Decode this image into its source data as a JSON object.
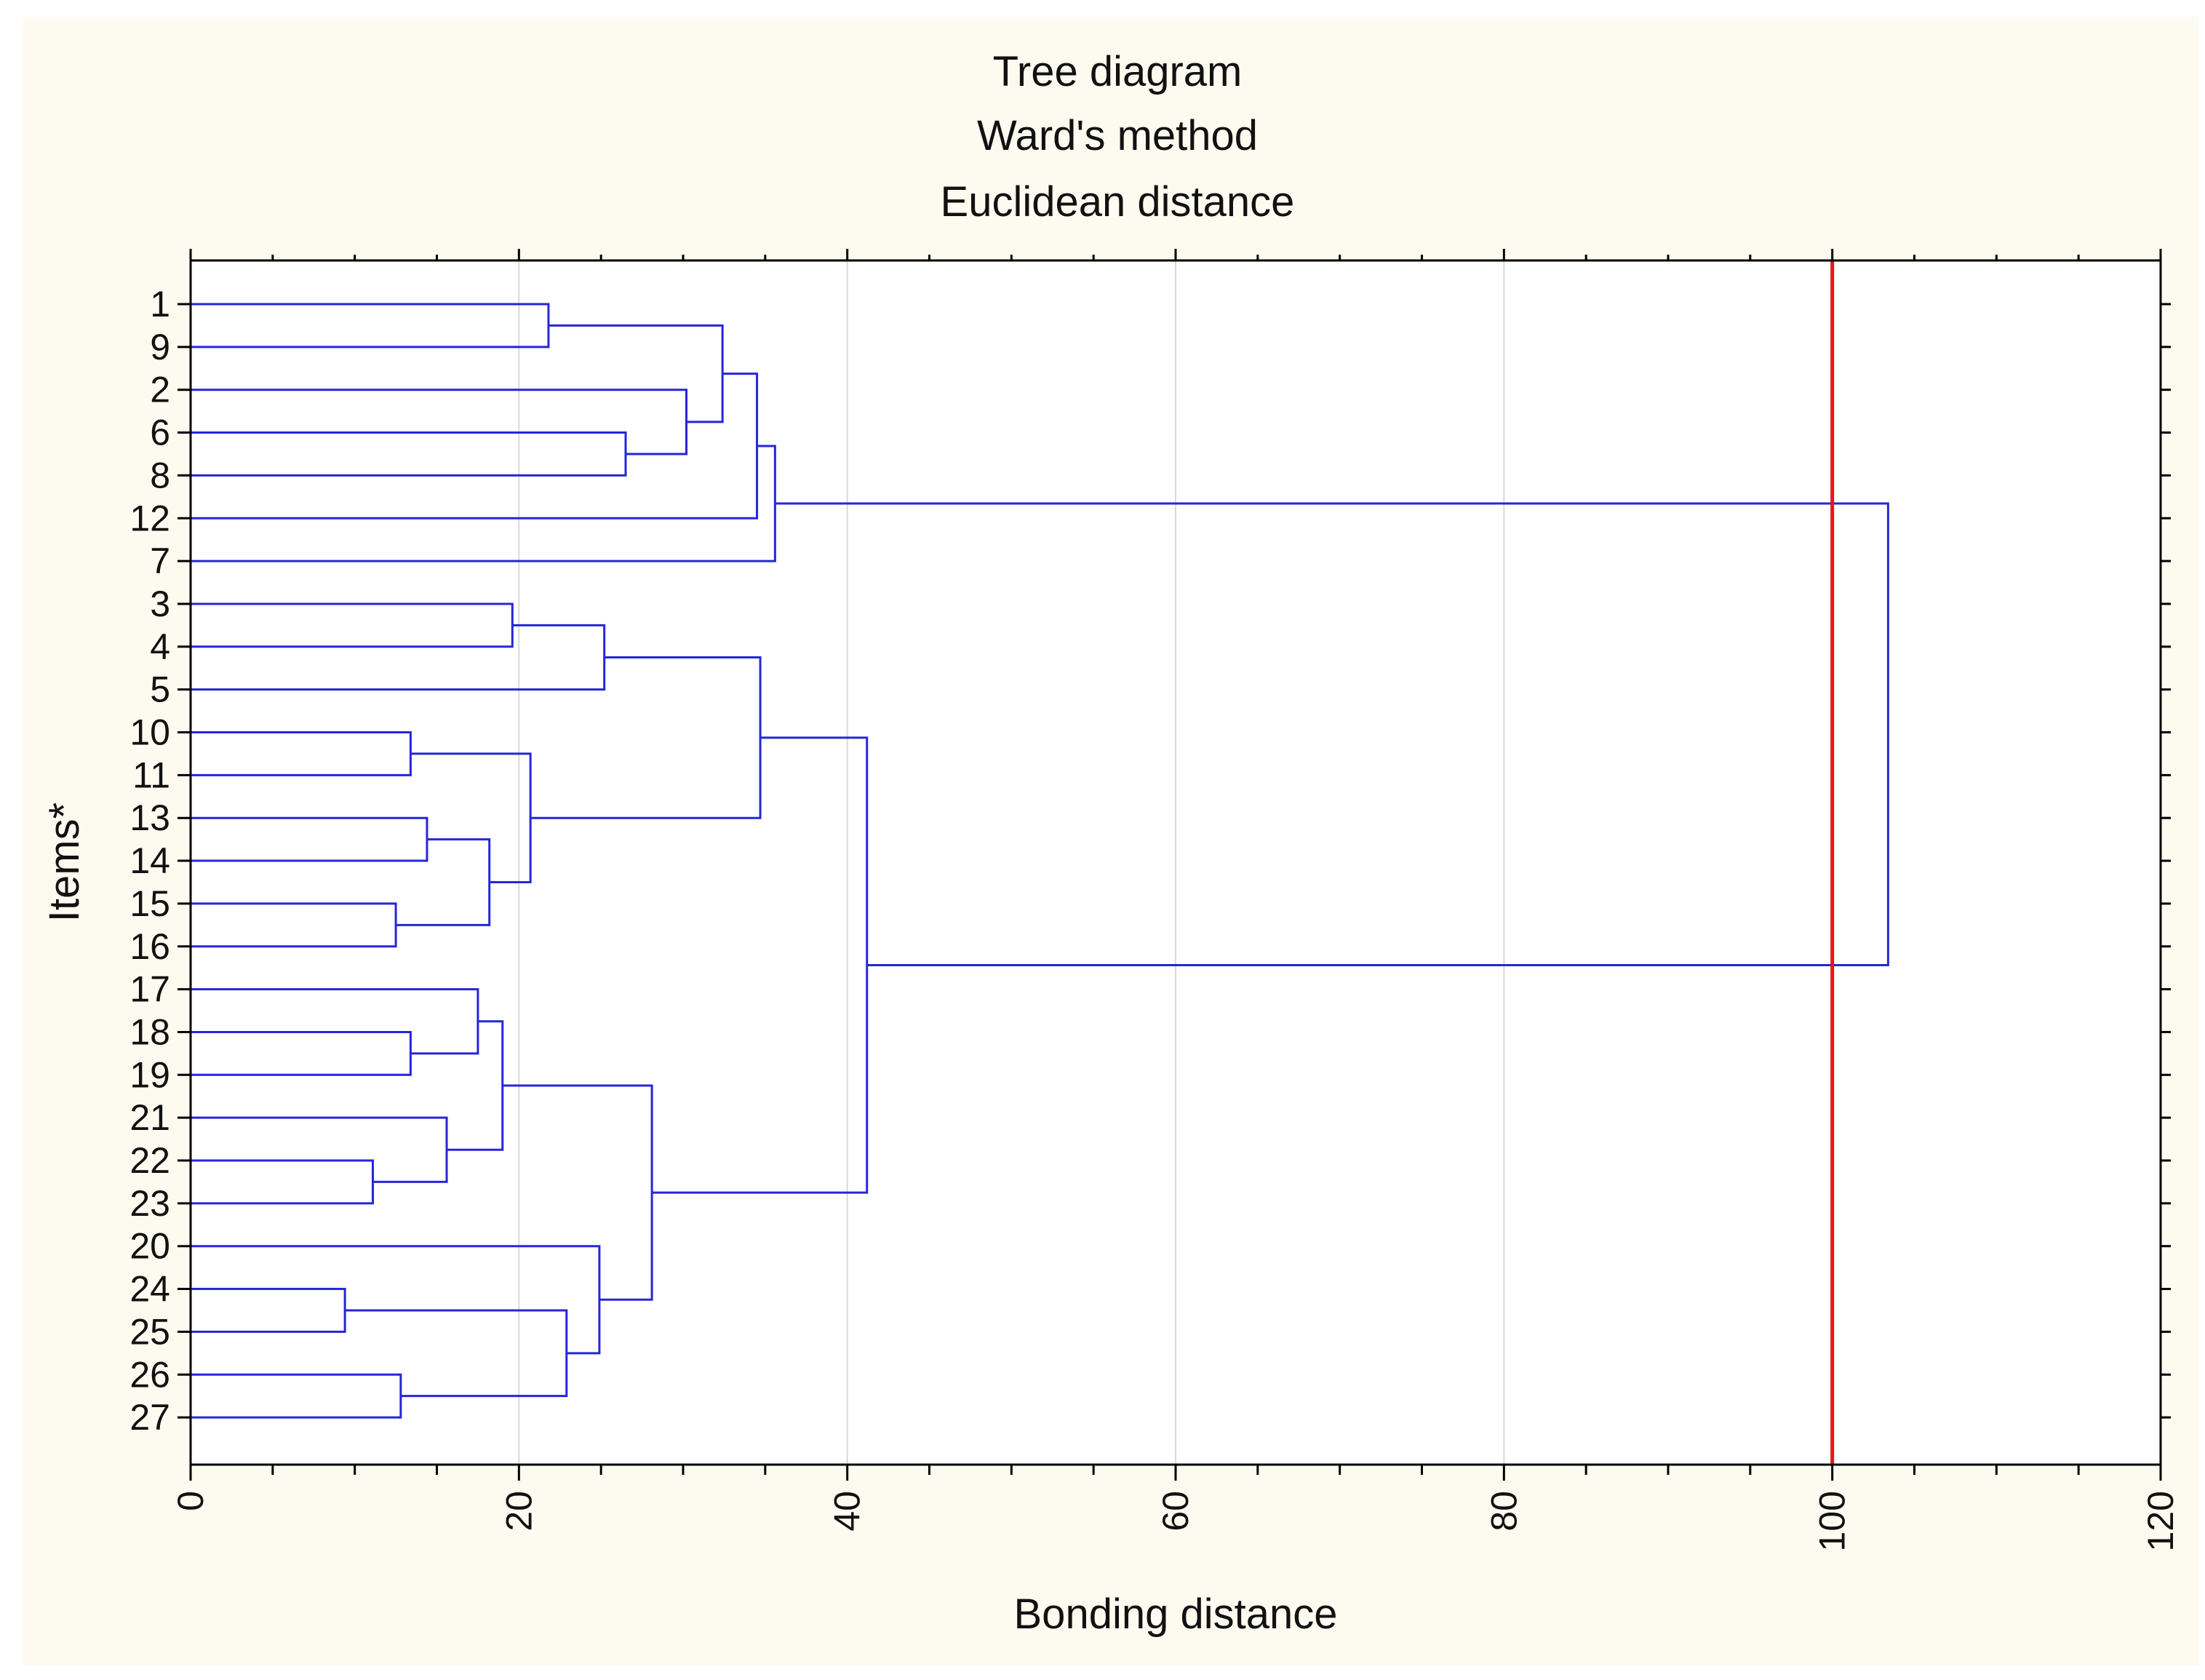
{
  "chart_data": {
    "type": "dendrogram",
    "orientation": "horizontal",
    "title_lines": [
      "Tree diagram",
      "Ward's method",
      "Euclidean distance"
    ],
    "xlabel": "Bonding distance",
    "ylabel": "Items*",
    "xlim": [
      0,
      120
    ],
    "xticks": [
      0,
      20,
      40,
      60,
      80,
      100,
      120
    ],
    "xtick_labels": [
      "0",
      "20",
      "40",
      "60",
      "80",
      "100",
      "120"
    ],
    "vertical_grid": true,
    "leaf_order": [
      "1",
      "9",
      "2",
      "6",
      "8",
      "12",
      "7",
      "3",
      "4",
      "5",
      "10",
      "11",
      "13",
      "14",
      "15",
      "16",
      "17",
      "18",
      "19",
      "21",
      "22",
      "23",
      "20",
      "24",
      "25",
      "26",
      "27"
    ],
    "merges": [
      {
        "id": "m1",
        "children": [
          "1",
          "9"
        ],
        "distance": 21.8
      },
      {
        "id": "m2",
        "children": [
          "6",
          "8"
        ],
        "distance": 26.5
      },
      {
        "id": "m3",
        "children": [
          "2",
          "m2"
        ],
        "distance": 30.2
      },
      {
        "id": "m4",
        "children": [
          "m1",
          "m3"
        ],
        "distance": 32.4
      },
      {
        "id": "m5",
        "children": [
          "m4",
          "12"
        ],
        "distance": 34.5
      },
      {
        "id": "m6",
        "children": [
          "m5",
          "7"
        ],
        "distance": 35.6
      },
      {
        "id": "m7",
        "children": [
          "3",
          "4"
        ],
        "distance": 19.6
      },
      {
        "id": "m8",
        "children": [
          "m7",
          "5"
        ],
        "distance": 25.2
      },
      {
        "id": "m9",
        "children": [
          "10",
          "11"
        ],
        "distance": 13.4
      },
      {
        "id": "m10",
        "children": [
          "13",
          "14"
        ],
        "distance": 14.4
      },
      {
        "id": "m11",
        "children": [
          "15",
          "16"
        ],
        "distance": 12.5
      },
      {
        "id": "m12",
        "children": [
          "m10",
          "m11"
        ],
        "distance": 18.2
      },
      {
        "id": "m13",
        "children": [
          "m9",
          "m12"
        ],
        "distance": 20.7
      },
      {
        "id": "m14",
        "children": [
          "m8",
          "m13"
        ],
        "distance": 34.7
      },
      {
        "id": "m15",
        "children": [
          "18",
          "19"
        ],
        "distance": 13.4
      },
      {
        "id": "m16",
        "children": [
          "17",
          "m15"
        ],
        "distance": 17.5
      },
      {
        "id": "m17",
        "children": [
          "22",
          "23"
        ],
        "distance": 11.1
      },
      {
        "id": "m18",
        "children": [
          "21",
          "m17"
        ],
        "distance": 15.6
      },
      {
        "id": "m19",
        "children": [
          "m16",
          "m18"
        ],
        "distance": 19.0
      },
      {
        "id": "m20",
        "children": [
          "24",
          "25"
        ],
        "distance": 9.4
      },
      {
        "id": "m21",
        "children": [
          "26",
          "27"
        ],
        "distance": 12.8
      },
      {
        "id": "m22",
        "children": [
          "m20",
          "m21"
        ],
        "distance": 22.9
      },
      {
        "id": "m23",
        "children": [
          "20",
          "m22"
        ],
        "distance": 24.9
      },
      {
        "id": "m24",
        "children": [
          "m19",
          "m23"
        ],
        "distance": 28.1
      },
      {
        "id": "m25",
        "children": [
          "m14",
          "m24"
        ],
        "distance": 41.2
      },
      {
        "id": "m26",
        "children": [
          "m6",
          "m25"
        ],
        "distance": 103.4
      }
    ],
    "cut_line": {
      "distance": 100,
      "color": "#e8141c"
    },
    "colors": {
      "background": "#fdfaf0",
      "plot_background": "#ffffff",
      "tree": "#2626d9",
      "grid": "#d9d9d9",
      "axis": "#000000"
    }
  }
}
